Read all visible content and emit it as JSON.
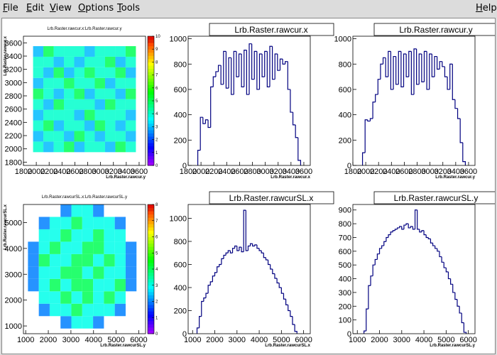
{
  "menu": {
    "items": [
      "File",
      "Edit",
      "View",
      "Options",
      "Tools"
    ],
    "help": "Help"
  },
  "chart_data": [
    {
      "type": "heatmap",
      "title": "Lrb.Raster.rawcur.x:Lrb.Raster.rawcur.y",
      "x_label": "Lrb.Raster.rawcur.y",
      "y_label": "Lrb.Raster.rawcur.x",
      "xlim": [
        1800,
        3700
      ],
      "ylim": [
        1750,
        3700
      ],
      "xticks": [
        1800,
        2000,
        2200,
        2400,
        2600,
        2800,
        3000,
        3200,
        3400,
        3600
      ],
      "yticks": [
        1800,
        2000,
        2200,
        2400,
        2600,
        2800,
        3000,
        3200,
        3400,
        3600
      ],
      "zlim": [
        0,
        10
      ],
      "zticks": [
        0,
        1,
        2,
        3,
        4,
        5,
        6,
        7,
        8,
        9,
        10
      ],
      "grid_x": [
        1950,
        2110,
        2270,
        2430,
        2590,
        2750,
        2910,
        3070,
        3230,
        3390,
        3550
      ],
      "grid_y": [
        1950,
        2110,
        2270,
        2430,
        2590,
        2750,
        2910,
        3070,
        3230,
        3390,
        3550
      ],
      "z": [
        [
          4,
          3,
          4,
          5,
          3,
          4,
          4,
          3,
          5,
          4
        ],
        [
          3,
          4,
          4,
          3,
          5,
          4,
          3,
          4,
          4,
          3
        ],
        [
          4,
          5,
          3,
          4,
          4,
          3,
          5,
          4,
          3,
          4
        ],
        [
          3,
          4,
          4,
          4,
          3,
          5,
          4,
          4,
          4,
          3
        ],
        [
          4,
          3,
          5,
          4,
          4,
          4,
          3,
          5,
          4,
          4
        ],
        [
          5,
          4,
          3,
          4,
          5,
          3,
          4,
          4,
          3,
          5
        ],
        [
          3,
          4,
          4,
          5,
          4,
          4,
          5,
          3,
          4,
          4
        ],
        [
          4,
          3,
          5,
          3,
          4,
          5,
          4,
          4,
          5,
          3
        ],
        [
          4,
          4,
          3,
          4,
          3,
          4,
          4,
          5,
          3,
          4
        ],
        [
          3,
          5,
          4,
          4,
          4,
          3,
          4,
          4,
          4,
          5
        ]
      ]
    },
    {
      "type": "histogram",
      "title": "Lrb.Raster.rawcur.x",
      "x_label": "Lrb.Raster.rawcur.x",
      "color": "#000080",
      "xlim": [
        1800,
        3700
      ],
      "ylim": [
        0,
        1020
      ],
      "xticks": [
        1800,
        2000,
        2200,
        2400,
        2600,
        2800,
        3000,
        3200,
        3400,
        3600
      ],
      "yticks": [
        0,
        200,
        400,
        600,
        800,
        1000
      ],
      "bins": [
        1950,
        1990,
        2030,
        2070,
        2110,
        2150,
        2190,
        2230,
        2270,
        2310,
        2350,
        2390,
        2430,
        2470,
        2510,
        2550,
        2590,
        2630,
        2670,
        2710,
        2750,
        2790,
        2830,
        2870,
        2910,
        2950,
        2990,
        3030,
        3070,
        3110,
        3150,
        3190,
        3230,
        3270,
        3310,
        3350,
        3390,
        3430,
        3470,
        3510,
        3550
      ],
      "values": [
        120,
        380,
        330,
        360,
        300,
        620,
        700,
        740,
        790,
        640,
        900,
        610,
        850,
        560,
        900,
        700,
        880,
        620,
        910,
        560,
        960,
        680,
        900,
        600,
        880,
        700,
        900,
        620,
        940,
        680,
        880,
        750,
        840,
        800,
        820,
        600,
        420,
        320,
        220,
        40
      ]
    },
    {
      "type": "histogram",
      "title": "Lrb.Raster.rawcur.y",
      "x_label": "Lrb.Raster.rawcur.y",
      "color": "#000080",
      "xlim": [
        1800,
        3700
      ],
      "ylim": [
        0,
        1020
      ],
      "xticks": [
        1800,
        2000,
        2200,
        2400,
        2600,
        2800,
        3000,
        3200,
        3400,
        3600
      ],
      "yticks": [
        0,
        200,
        400,
        600,
        800,
        1000
      ],
      "bins": [
        1950,
        1990,
        2030,
        2070,
        2110,
        2150,
        2190,
        2230,
        2270,
        2310,
        2350,
        2390,
        2430,
        2470,
        2510,
        2550,
        2590,
        2630,
        2670,
        2710,
        2750,
        2790,
        2830,
        2870,
        2910,
        2950,
        2990,
        3030,
        3070,
        3110,
        3150,
        3190,
        3230,
        3270,
        3310,
        3350,
        3390,
        3430,
        3470,
        3510,
        3550
      ],
      "values": [
        100,
        360,
        350,
        370,
        500,
        560,
        680,
        800,
        850,
        700,
        900,
        600,
        860,
        640,
        900,
        620,
        880,
        700,
        900,
        560,
        920,
        640,
        880,
        660,
        900,
        600,
        880,
        700,
        860,
        760,
        820,
        780,
        700,
        600,
        800,
        520,
        450,
        370,
        180,
        30
      ]
    },
    {
      "type": "heatmap",
      "title": "Lrb.Raster.rawcurSL.x:Lrb.Raster.rawcurSL.y",
      "x_label": "Lrb.Raster.rawcurSL.y",
      "y_label": "Lrb.Raster.rawcurSL.x",
      "xlim": [
        900,
        6300
      ],
      "ylim": [
        700,
        5700
      ],
      "xticks": [
        1000,
        2000,
        3000,
        4000,
        5000,
        6000
      ],
      "yticks": [
        1000,
        2000,
        3000,
        4000,
        5000
      ],
      "zlim": [
        0,
        8
      ],
      "zticks": [
        0,
        1,
        2,
        3,
        4,
        5,
        6,
        7,
        8
      ],
      "grid_x": [
        1100,
        1580,
        2060,
        2540,
        3020,
        3500,
        3980,
        4460,
        4940,
        5420,
        5900
      ],
      "grid_y": [
        900,
        1380,
        1860,
        2340,
        2820,
        3300,
        3780,
        4260,
        4740,
        5220,
        5700
      ],
      "z": [
        [
          0,
          0,
          0,
          2,
          3,
          3,
          2,
          0,
          0,
          0
        ],
        [
          0,
          2,
          3,
          3,
          4,
          3,
          3,
          3,
          2,
          0
        ],
        [
          0,
          3,
          3,
          4,
          3,
          4,
          3,
          4,
          3,
          0
        ],
        [
          2,
          3,
          4,
          3,
          4,
          4,
          3,
          3,
          4,
          2
        ],
        [
          2,
          3,
          3,
          4,
          4,
          3,
          4,
          3,
          3,
          2
        ],
        [
          2,
          4,
          3,
          3,
          4,
          4,
          3,
          4,
          3,
          2
        ],
        [
          2,
          3,
          4,
          3,
          3,
          4,
          4,
          3,
          3,
          2
        ],
        [
          0,
          3,
          3,
          4,
          3,
          3,
          4,
          3,
          3,
          0
        ],
        [
          0,
          2,
          3,
          3,
          4,
          3,
          3,
          3,
          2,
          0
        ],
        [
          0,
          0,
          0,
          2,
          3,
          3,
          2,
          0,
          0,
          0
        ]
      ]
    },
    {
      "type": "histogram",
      "title": "Lrb.Raster.rawcurSL.x",
      "x_label": "Lrb.Raster.rawcurSL.x",
      "color": "#000080",
      "xlim": [
        800,
        6300
      ],
      "ylim": [
        0,
        1120
      ],
      "xticks": [
        1000,
        2000,
        3000,
        4000,
        5000,
        6000
      ],
      "yticks": [
        0,
        200,
        400,
        600,
        800,
        1000
      ],
      "bins": [
        1200,
        1300,
        1400,
        1500,
        1600,
        1700,
        1800,
        1900,
        2000,
        2100,
        2200,
        2300,
        2400,
        2500,
        2600,
        2700,
        2800,
        2900,
        3000,
        3100,
        3200,
        3300,
        3400,
        3500,
        3600,
        3700,
        3800,
        3900,
        4000,
        4100,
        4200,
        4300,
        4400,
        4500,
        4600,
        4700,
        4800,
        4900,
        5000,
        5100,
        5200,
        5300,
        5400,
        5500,
        5600,
        5700
      ],
      "values": [
        50,
        150,
        280,
        310,
        350,
        420,
        450,
        500,
        530,
        580,
        600,
        650,
        680,
        700,
        720,
        700,
        740,
        760,
        720,
        750,
        710,
        1070,
        720,
        760,
        780,
        760,
        770,
        740,
        720,
        700,
        660,
        640,
        600,
        560,
        520,
        480,
        440,
        400,
        350,
        300,
        250,
        200,
        150,
        80,
        20
      ]
    },
    {
      "type": "histogram",
      "title": "Lrb.Raster.rawcurSL.y",
      "x_label": "Lrb.Raster.rawcurSL.y",
      "color": "#000080",
      "xlim": [
        800,
        6300
      ],
      "ylim": [
        0,
        940
      ],
      "xticks": [
        1000,
        2000,
        3000,
        4000,
        5000,
        6000
      ],
      "yticks": [
        0,
        100,
        200,
        300,
        400,
        500,
        600,
        700,
        800,
        900
      ],
      "bins": [
        1300,
        1400,
        1500,
        1600,
        1700,
        1800,
        1900,
        2000,
        2100,
        2200,
        2300,
        2400,
        2500,
        2600,
        2700,
        2800,
        2900,
        3000,
        3100,
        3200,
        3300,
        3400,
        3500,
        3600,
        3700,
        3800,
        3900,
        4000,
        4100,
        4200,
        4300,
        4400,
        4500,
        4600,
        4700,
        4800,
        4900,
        5000,
        5100,
        5200,
        5300,
        5400,
        5500,
        5600,
        5700,
        5800,
        5900
      ],
      "values": [
        20,
        180,
        350,
        420,
        500,
        540,
        580,
        620,
        640,
        670,
        700,
        720,
        740,
        750,
        760,
        770,
        780,
        760,
        790,
        800,
        770,
        780,
        760,
        900,
        760,
        740,
        750,
        720,
        700,
        690,
        660,
        640,
        620,
        600,
        560,
        520,
        480,
        450,
        400,
        360,
        300,
        250,
        200,
        150,
        80,
        10
      ]
    }
  ]
}
